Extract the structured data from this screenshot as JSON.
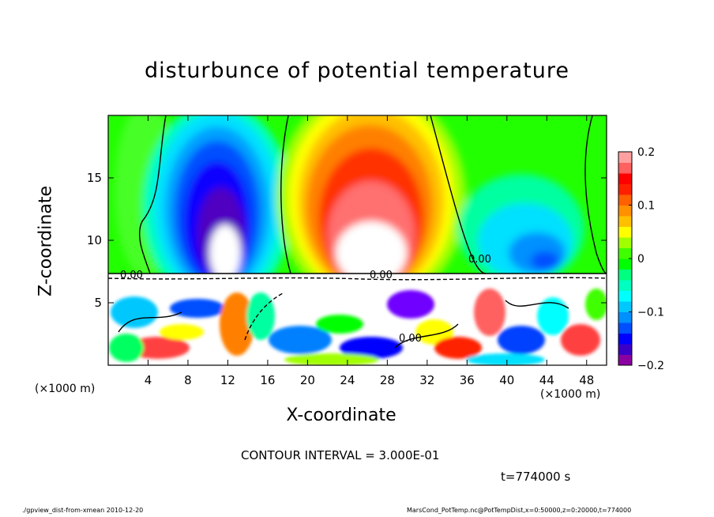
{
  "chart_data": {
    "type": "heatmap",
    "title": "disturbunce of potential temperature",
    "xlabel": "X-coordinate",
    "ylabel": "Z-coordinate",
    "x_unit_label": "(×1000 m)",
    "xlim": [
      0,
      50
    ],
    "ylim": [
      0,
      20
    ],
    "x_ticks": [
      4,
      8,
      12,
      16,
      20,
      24,
      28,
      32,
      36,
      40,
      44,
      48
    ],
    "y_ticks": [
      5,
      10,
      15
    ],
    "colorbar": {
      "range": [
        -0.2,
        0.2
      ],
      "tick_values": [
        0.2,
        0.1,
        0,
        -0.1,
        -0.2
      ],
      "tick_labels": [
        "0.2",
        "0.1",
        "0",
        "−0.1",
        "−0.2"
      ],
      "colors": [
        "#8b00a0",
        "#3a00c8",
        "#0000ff",
        "#0050ff",
        "#0090ff",
        "#00c8ff",
        "#00ffff",
        "#00ffc0",
        "#00ff80",
        "#00ff00",
        "#40ff00",
        "#a0ff00",
        "#ffff00",
        "#ffc000",
        "#ff9000",
        "#ff6000",
        "#ff2000",
        "#ff0000",
        "#ff6060",
        "#ffa0a0"
      ]
    },
    "contour_labels": [
      "0.00",
      "0.00",
      "0.00",
      "0.00"
    ],
    "features": [
      {
        "x": 13,
        "z": 14,
        "value": -0.2
      },
      {
        "x": 26,
        "z": 14,
        "value": 0.2
      },
      {
        "x": 40,
        "z": 10,
        "value": -0.1
      }
    ]
  },
  "annotations": {
    "contour_interval": "CONTOUR INTERVAL = 3.000E-01",
    "time": "t=774000 s",
    "footer_left": "./gpview_dist-from-xmean   2010-12-20",
    "footer_right": "MarsCond_PotTemp.nc@PotTempDist,x=0:50000,z=0:20000,t=774000"
  }
}
